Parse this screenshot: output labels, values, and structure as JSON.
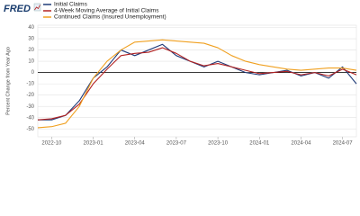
{
  "logo": "FRED",
  "chart_data": {
    "type": "line",
    "y_label": "Percent Change from Year Ago",
    "x": [
      "2022-09",
      "2022-10",
      "2022-11",
      "2022-12",
      "2023-01",
      "2023-02",
      "2023-03",
      "2023-04",
      "2023-05",
      "2023-06",
      "2023-07",
      "2023-08",
      "2023-09",
      "2023-10",
      "2023-11",
      "2023-12",
      "2024-01",
      "2024-02",
      "2024-03",
      "2024-04",
      "2024-05",
      "2024-06",
      "2024-07",
      "2024-08"
    ],
    "series": [
      {
        "name": "Initial Claims",
        "color": "#1f3a78",
        "values": [
          -42,
          -42,
          -38,
          -25,
          -5,
          5,
          20,
          15,
          20,
          25,
          15,
          10,
          5,
          10,
          5,
          0,
          -2,
          0,
          2,
          -3,
          0,
          -5,
          5,
          -10
        ]
      },
      {
        "name": "4-Week Moving Average of Initial Claims",
        "color": "#b22222",
        "values": [
          -42,
          -41,
          -38,
          -28,
          -10,
          3,
          15,
          17,
          18,
          22,
          17,
          10,
          6,
          8,
          5,
          2,
          -1,
          0,
          1,
          -2,
          0,
          -3,
          3,
          -2
        ]
      },
      {
        "name": "Continued Claims (Insured Unemployment)",
        "color": "#f0a020",
        "values": [
          -49,
          -48,
          -45,
          -30,
          -5,
          10,
          20,
          27,
          28,
          29,
          28,
          27,
          26,
          22,
          15,
          10,
          7,
          5,
          3,
          2,
          3,
          4,
          4,
          2
        ]
      }
    ],
    "xlim": [
      "2022-09",
      "2024-08"
    ],
    "xticks": [
      "2022-10",
      "2023-01",
      "2023-04",
      "2023-07",
      "2023-10",
      "2024-01",
      "2024-04",
      "2024-07"
    ],
    "ylim": [
      -57,
      42
    ],
    "yticks": [
      -50,
      -40,
      -30,
      -20,
      -10,
      0,
      10,
      20,
      30,
      40
    ],
    "zero_line": true,
    "grid": true
  }
}
